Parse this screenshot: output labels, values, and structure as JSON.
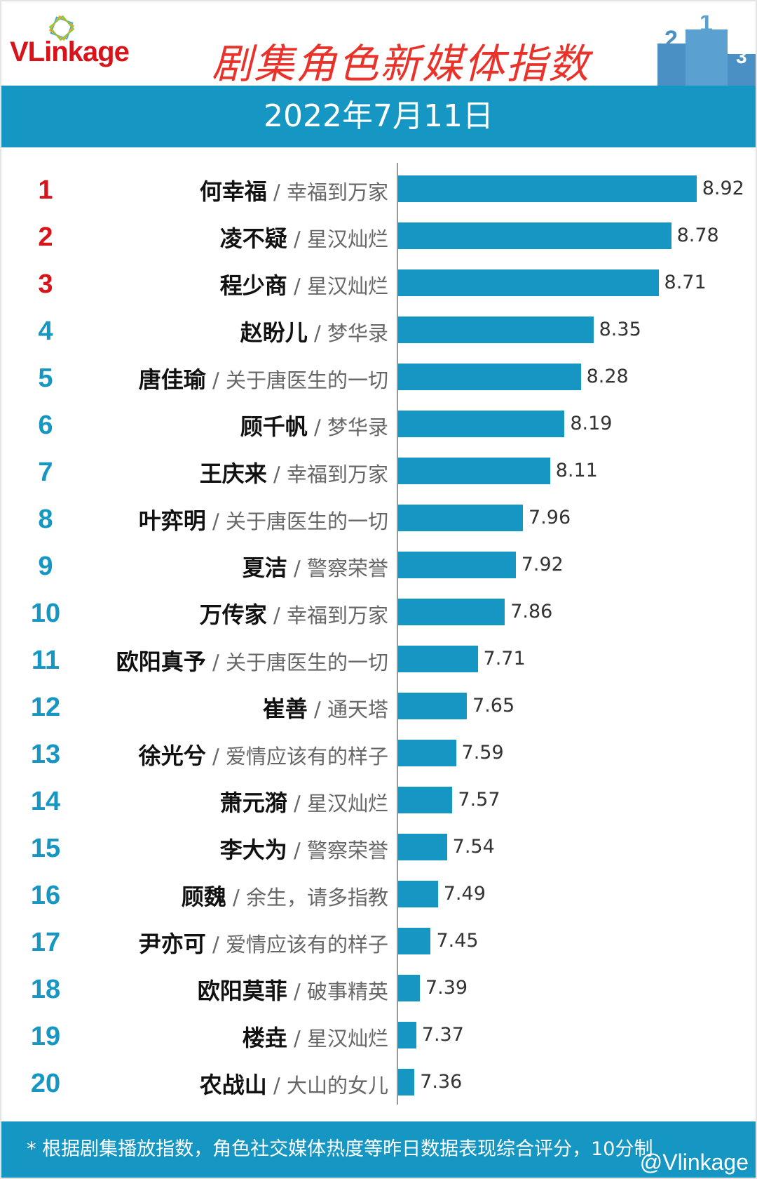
{
  "header": {
    "logo": "VLinkage",
    "title": "剧集角色新媒体指数",
    "date": "2022年7月11日"
  },
  "chart_data": {
    "type": "bar",
    "orientation": "horizontal",
    "title": "剧集角色新媒体指数",
    "xlim": [
      7.27,
      9.2
    ],
    "rows": [
      {
        "rank": "1",
        "name": "何幸福",
        "show": "幸福到万家",
        "value": 8.92
      },
      {
        "rank": "2",
        "name": "凌不疑",
        "show": "星汉灿烂",
        "value": 8.78
      },
      {
        "rank": "3",
        "name": "程少商",
        "show": "星汉灿烂",
        "value": 8.71
      },
      {
        "rank": "4",
        "name": "赵盼儿",
        "show": "梦华录",
        "value": 8.35
      },
      {
        "rank": "5",
        "name": "唐佳瑜",
        "show": "关于唐医生的一切",
        "value": 8.28
      },
      {
        "rank": "6",
        "name": "顾千帆",
        "show": "梦华录",
        "value": 8.19
      },
      {
        "rank": "7",
        "name": "王庆来",
        "show": "幸福到万家",
        "value": 8.11
      },
      {
        "rank": "8",
        "name": "叶弈明",
        "show": "关于唐医生的一切",
        "value": 7.96
      },
      {
        "rank": "9",
        "name": "夏洁",
        "show": "警察荣誉",
        "value": 7.92
      },
      {
        "rank": "10",
        "name": "万传家",
        "show": "幸福到万家",
        "value": 7.86
      },
      {
        "rank": "11",
        "name": "欧阳真予",
        "show": "关于唐医生的一切",
        "value": 7.71
      },
      {
        "rank": "12",
        "name": "崔善",
        "show": "通天塔",
        "value": 7.65
      },
      {
        "rank": "13",
        "name": "徐光兮",
        "show": "爱情应该有的样子",
        "value": 7.59
      },
      {
        "rank": "14",
        "name": "萧元漪",
        "show": "星汉灿烂",
        "value": 7.57
      },
      {
        "rank": "15",
        "name": "李大为",
        "show": "警察荣誉",
        "value": 7.54
      },
      {
        "rank": "16",
        "name": "顾魏",
        "show": "余生，请多指教",
        "value": 7.49
      },
      {
        "rank": "17",
        "name": "尹亦可",
        "show": "爱情应该有的样子",
        "value": 7.45
      },
      {
        "rank": "18",
        "name": "欧阳莫菲",
        "show": "破事精英",
        "value": 7.39
      },
      {
        "rank": "19",
        "name": "楼垚",
        "show": "星汉灿烂",
        "value": 7.37
      },
      {
        "rank": "20",
        "name": "农战山",
        "show": "大山的女儿",
        "value": 7.36
      }
    ],
    "separator": " / ",
    "colors": {
      "bar": "#1697c3",
      "top_rank": "#d8141a",
      "rank": "#1697c3"
    }
  },
  "footer": {
    "note": "* 根据剧集播放指数，角色社交媒体热度等昨日数据表现综合评分，10分制",
    "watermark": "@Vlinkage"
  }
}
